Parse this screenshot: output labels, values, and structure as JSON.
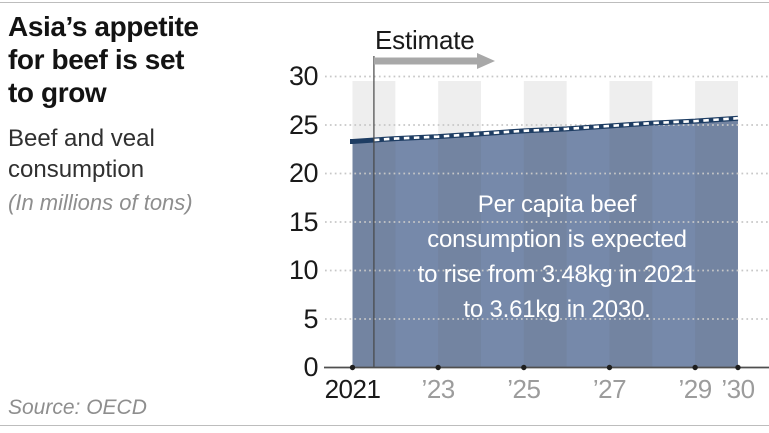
{
  "header": {
    "title": "Asia’s appetite\nfor beef is set\nto grow",
    "subtitle": "Beef and veal\nconsumption",
    "unit": "(In millions of tons)"
  },
  "footer": {
    "source": "Source: OECD"
  },
  "chart_data": {
    "type": "area",
    "title": "Asia’s appetite for beef is set to grow",
    "subtitle": "Beef and veal consumption",
    "ylabel": "(In millions of tons)",
    "x": [
      2021,
      2022,
      2023,
      2024,
      2025,
      2026,
      2027,
      2028,
      2029,
      2030
    ],
    "values": [
      23.3,
      23.6,
      23.8,
      24.1,
      24.4,
      24.6,
      24.9,
      25.2,
      25.4,
      25.7
    ],
    "ylim": [
      0,
      30
    ],
    "yticks": [
      0,
      5,
      10,
      15,
      20,
      25,
      30
    ],
    "xticks": [
      {
        "year": 2021,
        "label": "2021",
        "emphasis": true
      },
      {
        "year": 2023,
        "label": "’23",
        "emphasis": false
      },
      {
        "year": 2025,
        "label": "’25",
        "emphasis": false
      },
      {
        "year": 2027,
        "label": "’27",
        "emphasis": false
      },
      {
        "year": 2029,
        "label": "’29",
        "emphasis": false
      },
      {
        "year": 2030,
        "label": "’30",
        "emphasis": false
      }
    ],
    "band_start_years": [
      2021,
      2023,
      2025,
      2027,
      2029
    ],
    "estimate_divider_year": 2021.5,
    "estimate_label": "Estimate",
    "annotation": "Per capita beef\nconsumption is expected\nto rise from 3.48kg in 2021\nto 3.61kg in 2030.",
    "grid": "dotted horizontal",
    "legend": "none",
    "colors": {
      "area_fill": "#7689aa",
      "trend_line": "#1e3d63",
      "trend_dash": "#ffffff",
      "band_overlay": "#555555",
      "gridline": "#c7c7c7",
      "axis": "#4f4f4f",
      "tick_dot": "#1e1e1e",
      "arrow": "#a8a8a8",
      "muted_label": "#9c9c9c"
    }
  }
}
